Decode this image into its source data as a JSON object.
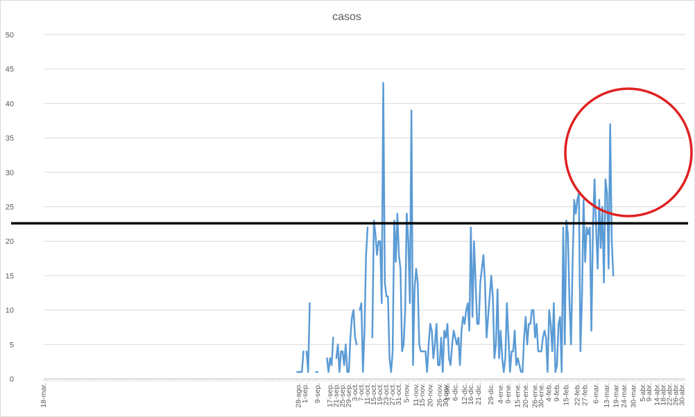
{
  "chart_data": {
    "type": "line",
    "title": "casos",
    "xlabel": "",
    "ylabel": "",
    "ylim": [
      0,
      50
    ],
    "yticks": [
      0,
      5,
      10,
      15,
      20,
      25,
      30,
      35,
      40,
      45,
      50
    ],
    "grid": true,
    "legend": "none",
    "series_color": "#5b9bd5",
    "x_start": "2020-03-18",
    "x_end": "2021-05-02",
    "x_tick_labels": [
      {
        "date": "2020-03-18",
        "label": "18-mar."
      },
      {
        "date": "2020-08-28",
        "label": "28-ago."
      },
      {
        "date": "2020-09-01",
        "label": "1-sep."
      },
      {
        "date": "2020-09-09",
        "label": "9-sep."
      },
      {
        "date": "2020-09-17",
        "label": "17-sep."
      },
      {
        "date": "2020-09-21",
        "label": "21-sep."
      },
      {
        "date": "2020-09-25",
        "label": "25-sep."
      },
      {
        "date": "2020-09-29",
        "label": "29-sep."
      },
      {
        "date": "2020-10-03",
        "label": "3-oct."
      },
      {
        "date": "2020-10-07",
        "label": "7-oct."
      },
      {
        "date": "2020-10-11",
        "label": "11-oct."
      },
      {
        "date": "2020-10-15",
        "label": "15-oct."
      },
      {
        "date": "2020-10-19",
        "label": "19-oct."
      },
      {
        "date": "2020-10-23",
        "label": "23-oct."
      },
      {
        "date": "2020-10-27",
        "label": "27-oct."
      },
      {
        "date": "2020-10-31",
        "label": "31-oct."
      },
      {
        "date": "2020-11-05",
        "label": "5-nov."
      },
      {
        "date": "2020-11-11",
        "label": "11-nov."
      },
      {
        "date": "2020-11-15",
        "label": "15-nov."
      },
      {
        "date": "2020-11-20",
        "label": "20-nov."
      },
      {
        "date": "2020-11-26",
        "label": "26-nov."
      },
      {
        "date": "2020-11-30",
        "label": "30-nov."
      },
      {
        "date": "2020-12-01",
        "label": "1-dic."
      },
      {
        "date": "2020-12-06",
        "label": "6-dic."
      },
      {
        "date": "2020-12-12",
        "label": "12-dic."
      },
      {
        "date": "2020-12-16",
        "label": "16-dic."
      },
      {
        "date": "2020-12-21",
        "label": "21-dic."
      },
      {
        "date": "2020-12-29",
        "label": "29-dic."
      },
      {
        "date": "2021-01-04",
        "label": "4-ene."
      },
      {
        "date": "2021-01-09",
        "label": "9-ene."
      },
      {
        "date": "2021-01-15",
        "label": "15-ene."
      },
      {
        "date": "2021-01-20",
        "label": "20-ene."
      },
      {
        "date": "2021-01-26",
        "label": "26-ene."
      },
      {
        "date": "2021-01-30",
        "label": "30-ene."
      },
      {
        "date": "2021-02-04",
        "label": "4-feb."
      },
      {
        "date": "2021-02-09",
        "label": "9-feb."
      },
      {
        "date": "2021-02-15",
        "label": "15-feb."
      },
      {
        "date": "2021-02-22",
        "label": "22-feb."
      },
      {
        "date": "2021-02-27",
        "label": "27-feb."
      },
      {
        "date": "2021-03-06",
        "label": "6-mar."
      },
      {
        "date": "2021-03-13",
        "label": "13-mar."
      },
      {
        "date": "2021-03-19",
        "label": "19-mar."
      },
      {
        "date": "2021-03-24",
        "label": "24-mar."
      },
      {
        "date": "2021-03-30",
        "label": "30-mar."
      },
      {
        "date": "2021-04-05",
        "label": "5-abr."
      },
      {
        "date": "2021-04-09",
        "label": "9-abr."
      },
      {
        "date": "2021-04-14",
        "label": "14-abr."
      },
      {
        "date": "2021-04-18",
        "label": "18-abr."
      },
      {
        "date": "2021-04-22",
        "label": "22-abr."
      },
      {
        "date": "2021-04-26",
        "label": "26-abr."
      },
      {
        "date": "2021-04-30",
        "label": "30-abr."
      }
    ],
    "series": [
      {
        "segments": [
          [
            [
              "2020-08-27",
              1
            ],
            [
              "2020-08-28",
              1
            ],
            [
              "2020-08-29",
              1
            ],
            [
              "2020-08-30",
              1
            ],
            [
              "2020-08-31",
              4
            ]
          ],
          [
            [
              "2020-09-02",
              4
            ],
            [
              "2020-09-03",
              1
            ],
            [
              "2020-09-04",
              11
            ]
          ],
          [
            [
              "2020-09-08",
              1
            ],
            [
              "2020-09-09",
              1
            ]
          ],
          [
            [
              "2020-09-15",
              3
            ],
            [
              "2020-09-16",
              1
            ],
            [
              "2020-09-17",
              3
            ],
            [
              "2020-09-18",
              2
            ],
            [
              "2020-09-19",
              6
            ]
          ],
          [
            [
              "2020-09-21",
              3
            ],
            [
              "2020-09-22",
              5
            ],
            [
              "2020-09-23",
              1
            ],
            [
              "2020-09-24",
              4
            ],
            [
              "2020-09-25",
              4
            ],
            [
              "2020-09-26",
              2
            ],
            [
              "2020-09-27",
              5
            ],
            [
              "2020-09-28",
              1
            ],
            [
              "2020-09-29",
              1
            ],
            [
              "2020-09-30",
              6
            ],
            [
              "2020-10-01",
              9
            ],
            [
              "2020-10-02",
              10
            ],
            [
              "2020-10-03",
              6
            ],
            [
              "2020-10-04",
              5
            ]
          ],
          [
            [
              "2020-10-06",
              10
            ],
            [
              "2020-10-07",
              11
            ],
            [
              "2020-10-08",
              1
            ],
            [
              "2020-10-09",
              7
            ],
            [
              "2020-10-10",
              18
            ],
            [
              "2020-10-11",
              22
            ]
          ],
          [
            [
              "2020-10-14",
              6
            ],
            [
              "2020-10-15",
              23
            ],
            [
              "2020-10-16",
              21
            ],
            [
              "2020-10-17",
              18
            ],
            [
              "2020-10-18",
              20
            ],
            [
              "2020-10-19",
              20
            ],
            [
              "2020-10-20",
              11
            ],
            [
              "2020-10-21",
              43
            ],
            [
              "2020-10-22",
              14
            ],
            [
              "2020-10-23",
              12
            ],
            [
              "2020-10-24",
              12
            ],
            [
              "2020-10-25",
              3
            ],
            [
              "2020-10-26",
              1
            ],
            [
              "2020-10-27",
              4
            ],
            [
              "2020-10-28",
              23
            ],
            [
              "2020-10-29",
              17
            ],
            [
              "2020-10-30",
              24
            ],
            [
              "2020-10-31",
              18
            ],
            [
              "2020-11-01",
              16
            ],
            [
              "2020-11-02",
              4
            ],
            [
              "2020-11-03",
              5
            ],
            [
              "2020-11-04",
              10
            ],
            [
              "2020-11-05",
              24
            ],
            [
              "2020-11-06",
              20
            ],
            [
              "2020-11-07",
              11
            ],
            [
              "2020-11-08",
              39
            ],
            [
              "2020-11-09",
              2
            ],
            [
              "2020-11-10",
              13
            ],
            [
              "2020-11-11",
              16
            ],
            [
              "2020-11-12",
              14
            ],
            [
              "2020-11-13",
              5
            ],
            [
              "2020-11-14",
              4
            ],
            [
              "2020-11-15",
              4
            ],
            [
              "2020-11-16",
              4
            ],
            [
              "2020-11-17",
              4
            ],
            [
              "2020-11-18",
              1
            ],
            [
              "2020-11-19",
              5
            ],
            [
              "2020-11-20",
              8
            ],
            [
              "2020-11-21",
              7
            ],
            [
              "2020-11-22",
              3
            ],
            [
              "2020-11-23",
              5
            ],
            [
              "2020-11-24",
              8
            ],
            [
              "2020-11-25",
              2
            ],
            [
              "2020-11-26",
              2
            ],
            [
              "2020-11-27",
              6
            ],
            [
              "2020-11-28",
              1
            ],
            [
              "2020-11-29",
              7
            ],
            [
              "2020-11-30",
              6
            ],
            [
              "2020-12-01",
              8
            ],
            [
              "2020-12-02",
              3
            ],
            [
              "2020-12-03",
              2
            ],
            [
              "2020-12-04",
              5
            ],
            [
              "2020-12-05",
              7
            ],
            [
              "2020-12-06",
              6
            ],
            [
              "2020-12-07",
              5
            ],
            [
              "2020-12-08",
              6
            ],
            [
              "2020-12-09",
              2
            ],
            [
              "2020-12-10",
              7
            ],
            [
              "2020-12-11",
              9
            ],
            [
              "2020-12-12",
              8
            ],
            [
              "2020-12-13",
              10
            ],
            [
              "2020-12-14",
              11
            ],
            [
              "2020-12-15",
              7
            ],
            [
              "2020-12-16",
              22
            ],
            [
              "2020-12-17",
              9
            ],
            [
              "2020-12-18",
              20
            ],
            [
              "2020-12-19",
              14
            ],
            [
              "2020-12-20",
              8
            ],
            [
              "2020-12-21",
              8
            ],
            [
              "2020-12-22",
              14
            ],
            [
              "2020-12-23",
              16
            ],
            [
              "2020-12-24",
              18
            ],
            [
              "2020-12-25",
              14
            ],
            [
              "2020-12-26",
              6
            ],
            [
              "2020-12-27",
              9
            ],
            [
              "2020-12-28",
              12
            ],
            [
              "2020-12-29",
              15
            ],
            [
              "2020-12-30",
              12
            ],
            [
              "2020-12-31",
              3
            ],
            [
              "2021-01-01",
              5
            ],
            [
              "2021-01-02",
              13
            ],
            [
              "2021-01-03",
              3
            ],
            [
              "2021-01-04",
              7
            ],
            [
              "2021-01-05",
              3
            ],
            [
              "2021-01-06",
              1
            ],
            [
              "2021-01-07",
              3
            ],
            [
              "2021-01-08",
              11
            ],
            [
              "2021-01-09",
              6
            ],
            [
              "2021-01-10",
              1
            ],
            [
              "2021-01-11",
              4
            ],
            [
              "2021-01-12",
              4
            ],
            [
              "2021-01-13",
              7
            ],
            [
              "2021-01-14",
              2
            ],
            [
              "2021-01-15",
              3
            ],
            [
              "2021-01-16",
              2
            ],
            [
              "2021-01-17",
              1
            ],
            [
              "2021-01-18",
              1
            ],
            [
              "2021-01-19",
              6
            ],
            [
              "2021-01-20",
              9
            ],
            [
              "2021-01-21",
              5
            ],
            [
              "2021-01-22",
              8
            ],
            [
              "2021-01-23",
              8
            ],
            [
              "2021-01-24",
              10
            ],
            [
              "2021-01-25",
              10
            ],
            [
              "2021-01-26",
              6
            ],
            [
              "2021-01-27",
              8
            ],
            [
              "2021-01-28",
              4
            ],
            [
              "2021-01-29",
              4
            ],
            [
              "2021-01-30",
              4
            ],
            [
              "2021-01-31",
              6
            ],
            [
              "2021-02-01",
              7
            ],
            [
              "2021-02-02",
              6
            ],
            [
              "2021-02-03",
              1
            ],
            [
              "2021-02-04",
              10
            ],
            [
              "2021-02-05",
              8
            ],
            [
              "2021-02-06",
              4
            ],
            [
              "2021-02-07",
              11
            ],
            [
              "2021-02-08",
              1
            ],
            [
              "2021-02-09",
              2
            ],
            [
              "2021-02-10",
              8
            ],
            [
              "2021-02-11",
              9
            ],
            [
              "2021-02-12",
              1
            ],
            [
              "2021-02-13",
              22
            ],
            [
              "2021-02-14",
              5
            ],
            [
              "2021-02-15",
              23
            ],
            [
              "2021-02-16",
              21
            ],
            [
              "2021-02-17",
              11
            ],
            [
              "2021-02-18",
              5
            ],
            [
              "2021-02-19",
              17
            ],
            [
              "2021-02-20",
              26
            ],
            [
              "2021-02-21",
              24
            ],
            [
              "2021-02-22",
              26
            ],
            [
              "2021-02-23",
              27
            ],
            [
              "2021-02-24",
              4
            ],
            [
              "2021-02-25",
              12
            ],
            [
              "2021-02-26",
              26
            ],
            [
              "2021-02-27",
              17
            ],
            [
              "2021-02-28",
              22
            ],
            [
              "2021-03-01",
              21
            ],
            [
              "2021-03-02",
              22
            ],
            [
              "2021-03-03",
              7
            ],
            [
              "2021-03-04",
              22
            ],
            [
              "2021-03-05",
              29
            ],
            [
              "2021-03-06",
              22
            ],
            [
              "2021-03-07",
              16
            ],
            [
              "2021-03-08",
              26
            ],
            [
              "2021-03-09",
              19
            ],
            [
              "2021-03-10",
              25
            ],
            [
              "2021-03-11",
              14
            ],
            [
              "2021-03-12",
              29
            ],
            [
              "2021-03-13",
              27
            ],
            [
              "2021-03-14",
              16
            ],
            [
              "2021-03-15",
              37
            ],
            [
              "2021-03-16",
              20
            ],
            [
              "2021-03-17",
              15
            ]
          ]
        ]
      }
    ],
    "annotations": [
      {
        "type": "horizontal-line",
        "y": 22.6,
        "color": "#000000"
      },
      {
        "type": "circle",
        "color": "#e02020"
      }
    ]
  }
}
